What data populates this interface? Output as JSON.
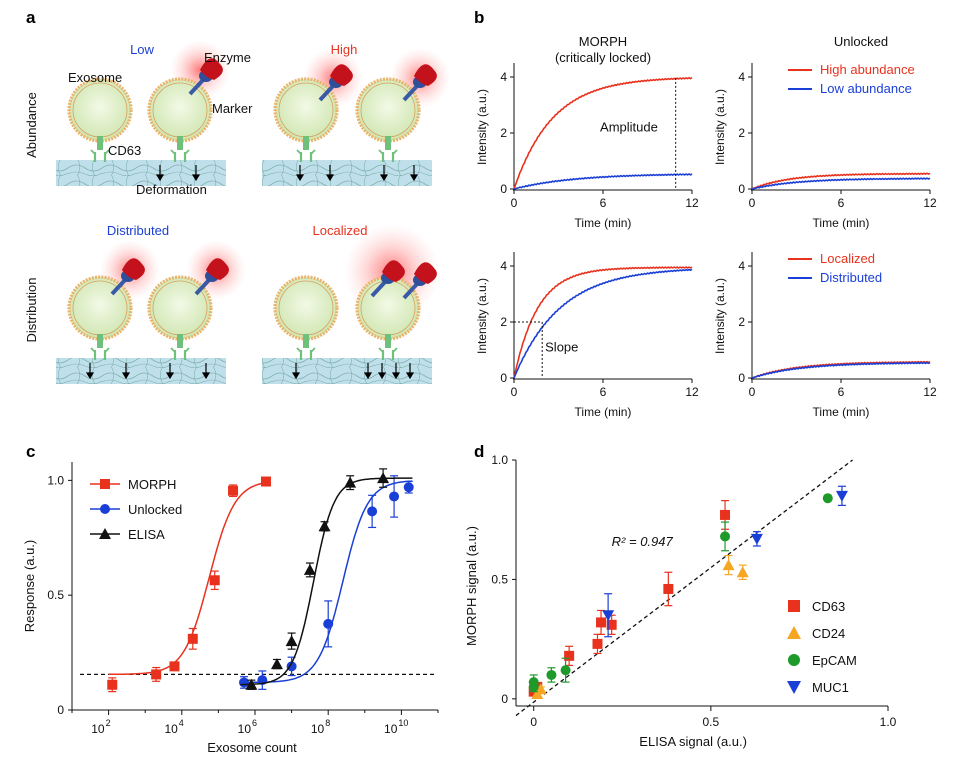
{
  "panels": {
    "a": "a",
    "b": "b",
    "c": "c",
    "d": "d"
  },
  "colors": {
    "red": "#e8321e",
    "blue": "#1a3fd6",
    "black": "#111111",
    "orange": "#f5a623",
    "green": "#1e9a2a"
  },
  "panel_a": {
    "row1_label": "Abundance",
    "row2_label": "Distribution",
    "low": "Low",
    "high": "High",
    "distributed": "Distributed",
    "localized": "Localized",
    "exosome": "Exosome",
    "enzyme": "Enzyme",
    "marker": "Marker",
    "cd63": "CD63",
    "deformation": "Deformation"
  },
  "chart_data": [
    {
      "id": "b1",
      "type": "line",
      "title": "MORPH",
      "subtitle": "(critically locked)",
      "xlabel": "Time (min)",
      "ylabel": "Intensity (a.u.)",
      "xlim": [
        0,
        12
      ],
      "ylim": [
        0,
        4.6
      ],
      "xticks": [
        "0",
        "6",
        "12"
      ],
      "yticks": [
        "0",
        "2",
        "4"
      ],
      "annotation": "Amplitude",
      "series": [
        {
          "color": "#e8321e",
          "plateau": 4.0,
          "tau": 2.6
        },
        {
          "color": "#1a3fd6",
          "plateau": 0.55,
          "tau": 4.0
        }
      ]
    },
    {
      "id": "b2",
      "type": "line",
      "title": "Unlocked",
      "xlabel": "Time (min)",
      "ylabel": "Intensity (a.u.)",
      "xlim": [
        0,
        12
      ],
      "ylim": [
        0,
        4.6
      ],
      "xticks": [
        "0",
        "6",
        "12"
      ],
      "yticks": [
        "0",
        "2",
        "4"
      ],
      "legend": "top-right",
      "series": [
        {
          "name": "High abundance",
          "color": "#e8321e",
          "plateau": 0.55,
          "tau": 2.5
        },
        {
          "name": "Low abundance",
          "color": "#1a3fd6",
          "plateau": 0.38,
          "tau": 3.0
        }
      ]
    },
    {
      "id": "b3",
      "type": "line",
      "xlabel": "Time (min)",
      "ylabel": "Intensity (a.u.)",
      "xlim": [
        0,
        12
      ],
      "ylim": [
        0,
        4.6
      ],
      "xticks": [
        "0",
        "6",
        "12"
      ],
      "yticks": [
        "0",
        "2",
        "4"
      ],
      "annotation": "Slope",
      "series": [
        {
          "color": "#e8321e",
          "plateau": 3.95,
          "tau": 1.6
        },
        {
          "color": "#1a3fd6",
          "plateau": 3.95,
          "tau": 3.1
        }
      ]
    },
    {
      "id": "b4",
      "type": "line",
      "xlabel": "Time (min)",
      "ylabel": "Intensity (a.u.)",
      "xlim": [
        0,
        12
      ],
      "ylim": [
        0,
        4.6
      ],
      "xticks": [
        "0",
        "6",
        "12"
      ],
      "yticks": [
        "0",
        "2",
        "4"
      ],
      "legend": "top-right",
      "series": [
        {
          "name": "Localized",
          "color": "#e8321e",
          "plateau": 0.58,
          "tau": 3.0
        },
        {
          "name": "Distributed",
          "color": "#1a3fd6",
          "plateau": 0.55,
          "tau": 3.2
        }
      ]
    },
    {
      "id": "c",
      "type": "scatter",
      "xlabel": "Exosome count",
      "ylabel": "Response (a.u.)",
      "xscale": "log",
      "xlim": [
        1,
        11
      ],
      "ylim": [
        0,
        1.08
      ],
      "xticks": [
        "2",
        "4",
        "6",
        "8",
        "10"
      ],
      "yticks": [
        "0",
        "0.5",
        "1.0"
      ],
      "baseline": 0.155,
      "legend": "top-left",
      "series": [
        {
          "name": "MORPH",
          "color": "#e8321e",
          "marker": "square",
          "x": [
            2.1,
            3.3,
            3.8,
            4.3,
            4.9,
            5.4,
            6.3
          ],
          "y": [
            0.11,
            0.155,
            0.19,
            0.31,
            0.565,
            0.955,
            0.995
          ],
          "err": [
            0.03,
            0.03,
            0.015,
            0.045,
            0.04,
            0.025,
            0.0
          ],
          "fit": {
            "bottom": 0.155,
            "top": 1.0,
            "ec50": 4.75,
            "hill": 1.25
          }
        },
        {
          "name": "Unlocked",
          "color": "#1a3fd6",
          "marker": "circle",
          "x": [
            5.7,
            6.2,
            7.0,
            8.0,
            9.2,
            9.8,
            10.2
          ],
          "y": [
            0.12,
            0.13,
            0.19,
            0.375,
            0.865,
            0.93,
            0.97
          ],
          "err": [
            0.025,
            0.04,
            0.04,
            0.1,
            0.07,
            0.09,
            0.025
          ],
          "fit": {
            "bottom": 0.12,
            "top": 1.0,
            "ec50": 8.4,
            "hill": 1.3
          }
        },
        {
          "name": "ELISA",
          "color": "#111111",
          "marker": "triangle",
          "x": [
            5.9,
            6.6,
            7.0,
            7.5,
            7.9,
            8.6,
            9.5
          ],
          "y": [
            0.11,
            0.2,
            0.3,
            0.61,
            0.8,
            0.99,
            1.01
          ],
          "err": [
            0.02,
            0.02,
            0.035,
            0.03,
            0.02,
            0.03,
            0.04
          ],
          "fit": {
            "bottom": 0.11,
            "top": 1.01,
            "ec50": 7.6,
            "hill": 1.55
          }
        }
      ]
    },
    {
      "id": "d",
      "type": "scatter",
      "xlabel": "ELISA signal (a.u.)",
      "ylabel": "MORPH signal (a.u.)",
      "xlim": [
        -0.05,
        1.0
      ],
      "ylim": [
        -0.03,
        1.0
      ],
      "xticks": [
        "0",
        "0.5",
        "1.0"
      ],
      "yticks": [
        "0",
        "0.5",
        "1.0"
      ],
      "annotation": "R² = 0.947",
      "fit_line": [
        [
          -0.05,
          -0.07
        ],
        [
          0.9,
          1.0
        ]
      ],
      "legend": "bottom-right",
      "series": [
        {
          "name": "CD63",
          "color": "#e8321e",
          "marker": "square",
          "x": [
            0.0,
            0.01,
            0.1,
            0.18,
            0.19,
            0.22,
            0.38,
            0.54
          ],
          "y": [
            0.03,
            0.05,
            0.18,
            0.23,
            0.32,
            0.31,
            0.46,
            0.77
          ],
          "err": [
            0.01,
            0.01,
            0.04,
            0.04,
            0.05,
            0.04,
            0.07,
            0.06
          ]
        },
        {
          "name": "CD24",
          "color": "#f5a623",
          "marker": "triangle",
          "x": [
            0.01,
            0.02,
            0.55,
            0.59
          ],
          "y": [
            0.02,
            0.04,
            0.56,
            0.53
          ],
          "err": [
            0.01,
            0.01,
            0.04,
            0.03
          ]
        },
        {
          "name": "EpCAM",
          "color": "#1e9a2a",
          "marker": "circle",
          "x": [
            0.0,
            0.0,
            0.05,
            0.09,
            0.54,
            0.83
          ],
          "y": [
            0.05,
            0.07,
            0.1,
            0.12,
            0.68,
            0.84
          ],
          "err": [
            0.02,
            0.03,
            0.03,
            0.05,
            0.06,
            0.0
          ]
        },
        {
          "name": "MUC1",
          "color": "#1a3fd6",
          "marker": "triangle-down",
          "x": [
            0.21,
            0.63,
            0.87
          ],
          "y": [
            0.35,
            0.67,
            0.85
          ],
          "err": [
            0.09,
            0.03,
            0.04
          ]
        }
      ]
    }
  ]
}
